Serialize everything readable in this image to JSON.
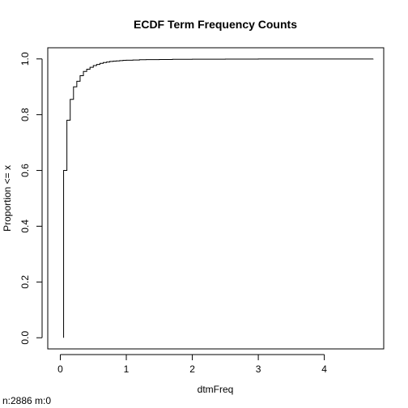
{
  "chart_data": {
    "type": "line",
    "subtype": "ecdf-step",
    "title": "ECDF Term Frequency Counts",
    "xlabel": "dtmFreq",
    "ylabel": "Proportion <= x",
    "footnote": "n:2886 m:0",
    "xlim": [
      -0.19,
      4.9
    ],
    "ylim": [
      -0.04,
      1.04
    ],
    "x_ticks": [
      0,
      1,
      2,
      3,
      4
    ],
    "x_tick_labels": [
      "0",
      "1",
      "2",
      "3",
      "4"
    ],
    "y_ticks": [
      0.0,
      0.2,
      0.4,
      0.6,
      0.8,
      1.0
    ],
    "y_tick_labels": [
      "0.0",
      "0.2",
      "0.4",
      "0.6",
      "0.8",
      "1.0"
    ],
    "grid": false,
    "legend": "none",
    "line_color": "#000000",
    "series": [
      {
        "x": [
          0.05,
          0.1,
          0.15,
          0.2,
          0.25,
          0.3,
          0.35,
          0.4,
          0.45,
          0.5,
          0.55,
          0.6,
          0.65,
          0.7,
          0.75,
          0.8,
          0.85,
          0.9,
          0.95,
          1.0,
          1.1,
          1.2,
          1.3,
          1.5,
          1.7,
          2.0,
          2.5,
          3.0,
          4.74
        ],
        "y": [
          0.6,
          0.78,
          0.855,
          0.9,
          0.92,
          0.94,
          0.955,
          0.963,
          0.97,
          0.976,
          0.98,
          0.984,
          0.987,
          0.989,
          0.991,
          0.992,
          0.993,
          0.994,
          0.995,
          0.9955,
          0.996,
          0.997,
          0.9975,
          0.998,
          0.9985,
          0.999,
          0.9993,
          0.9996,
          1.0
        ]
      }
    ]
  }
}
